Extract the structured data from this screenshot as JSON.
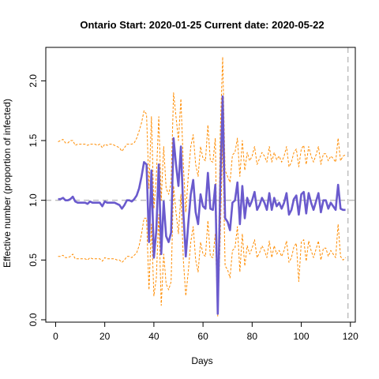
{
  "chart_data": {
    "type": "line",
    "title": "Ontario Start:  2020-01-25   Current date:  2020-05-22",
    "xlabel": "Days",
    "ylabel": "Effective number (proportion of infected)",
    "xlim": [
      -4,
      122
    ],
    "ylim": [
      -0.02,
      2.28
    ],
    "xticks": [
      0,
      20,
      40,
      60,
      80,
      100,
      120
    ],
    "yticks": [
      0.0,
      0.5,
      1.0,
      1.5,
      2.0
    ],
    "ytick_labels": [
      "0.0",
      "0.5",
      "1.0",
      "1.5",
      "2.0"
    ],
    "reference_hline": 1.0,
    "reference_vline": 119,
    "colors": {
      "main": "#6a5acd",
      "bounds": "#ff8c00",
      "reference": "#bebebe",
      "axis": "#000000"
    },
    "x": [
      1,
      2,
      3,
      4,
      5,
      6,
      7,
      8,
      9,
      10,
      11,
      12,
      13,
      14,
      15,
      16,
      17,
      18,
      19,
      20,
      21,
      22,
      23,
      24,
      25,
      26,
      27,
      28,
      29,
      30,
      31,
      32,
      33,
      34,
      35,
      36,
      37,
      38,
      39,
      40,
      41,
      42,
      43,
      44,
      45,
      46,
      47,
      48,
      49,
      50,
      51,
      52,
      53,
      54,
      55,
      56,
      57,
      58,
      59,
      60,
      61,
      62,
      63,
      64,
      65,
      66,
      67,
      68,
      69,
      70,
      71,
      72,
      73,
      74,
      75,
      76,
      77,
      78,
      79,
      80,
      81,
      82,
      83,
      84,
      85,
      86,
      87,
      88,
      89,
      90,
      91,
      92,
      93,
      94,
      95,
      96,
      97,
      98,
      99,
      100,
      101,
      102,
      103,
      104,
      105,
      106,
      107,
      108,
      109,
      110,
      111,
      112,
      113,
      114,
      115,
      116,
      117,
      118
    ],
    "series": [
      {
        "role": "estimate",
        "values": [
          1.01,
          1.01,
          1.02,
          1.0,
          1.0,
          1.01,
          1.03,
          0.99,
          0.98,
          0.98,
          0.98,
          0.98,
          0.97,
          0.99,
          0.98,
          0.98,
          0.98,
          0.98,
          0.95,
          0.99,
          0.98,
          0.98,
          0.98,
          0.98,
          0.97,
          0.96,
          0.93,
          0.96,
          1.0,
          1.0,
          0.99,
          1.01,
          1.04,
          1.1,
          1.2,
          1.32,
          1.3,
          0.65,
          1.25,
          0.52,
          0.75,
          1.3,
          0.55,
          0.99,
          0.7,
          0.65,
          0.73,
          1.52,
          1.3,
          1.12,
          1.45,
          0.9,
          0.53,
          0.8,
          1.05,
          1.17,
          0.9,
          0.8,
          1.05,
          0.95,
          0.93,
          1.23,
          0.93,
          0.92,
          1.13,
          0.05,
          1.1,
          1.87,
          0.85,
          0.82,
          0.75,
          0.98,
          1.0,
          1.15,
          0.8,
          1.12,
          0.85,
          1.02,
          0.95,
          1.0,
          1.07,
          0.92,
          0.96,
          1.02,
          0.98,
          0.92,
          1.06,
          0.92,
          1.02,
          0.95,
          0.98,
          0.93,
          0.98,
          1.06,
          0.88,
          0.92,
          1.01,
          1.04,
          0.88,
          1.05,
          1.07,
          0.89,
          1.06,
          0.98,
          0.92,
          0.99,
          1.06,
          0.9,
          1.0,
          1.0,
          0.93,
          0.98,
          0.95,
          0.92,
          1.13,
          0.93,
          0.92,
          0.92
        ]
      },
      {
        "role": "upper",
        "values": [
          1.49,
          1.5,
          1.51,
          1.48,
          1.48,
          1.5,
          1.5,
          1.46,
          1.47,
          1.47,
          1.47,
          1.47,
          1.46,
          1.47,
          1.47,
          1.47,
          1.46,
          1.47,
          1.44,
          1.47,
          1.46,
          1.47,
          1.47,
          1.46,
          1.45,
          1.44,
          1.41,
          1.44,
          1.47,
          1.47,
          1.47,
          1.48,
          1.52,
          1.58,
          1.65,
          1.75,
          1.72,
          1.1,
          1.7,
          0.93,
          1.2,
          1.7,
          1.0,
          1.45,
          1.1,
          1.05,
          1.15,
          1.9,
          1.7,
          1.5,
          1.85,
          1.3,
          0.9,
          1.2,
          1.45,
          1.55,
          1.3,
          1.2,
          1.45,
          1.35,
          1.33,
          1.63,
          1.33,
          1.32,
          1.52,
          0.12,
          1.55,
          2.2,
          1.25,
          1.2,
          1.15,
          1.38,
          1.4,
          1.52,
          1.2,
          1.5,
          1.25,
          1.4,
          1.33,
          1.37,
          1.45,
          1.3,
          1.35,
          1.4,
          1.37,
          1.32,
          1.45,
          1.32,
          1.4,
          1.34,
          1.37,
          1.32,
          1.37,
          1.45,
          1.28,
          1.32,
          1.4,
          1.43,
          1.28,
          1.43,
          1.46,
          1.3,
          1.45,
          1.37,
          1.32,
          1.38,
          1.45,
          1.3,
          1.39,
          1.39,
          1.33,
          1.37,
          1.35,
          1.32,
          1.52,
          1.33,
          1.37,
          1.38
        ]
      },
      {
        "role": "lower",
        "values": [
          0.53,
          0.53,
          0.54,
          0.52,
          0.52,
          0.53,
          0.55,
          0.51,
          0.51,
          0.51,
          0.51,
          0.51,
          0.5,
          0.52,
          0.51,
          0.51,
          0.51,
          0.51,
          0.49,
          0.52,
          0.51,
          0.51,
          0.51,
          0.51,
          0.5,
          0.5,
          0.48,
          0.5,
          0.53,
          0.53,
          0.52,
          0.54,
          0.56,
          0.62,
          0.72,
          0.85,
          0.85,
          0.25,
          0.8,
          0.2,
          0.35,
          0.88,
          0.12,
          0.55,
          0.3,
          0.25,
          0.32,
          1.12,
          0.9,
          0.72,
          1.05,
          0.5,
          0.2,
          0.4,
          0.65,
          0.78,
          0.5,
          0.4,
          0.65,
          0.55,
          0.53,
          0.83,
          0.53,
          0.52,
          0.72,
          0.03,
          0.68,
          1.5,
          0.45,
          0.42,
          0.35,
          0.58,
          0.6,
          0.78,
          0.4,
          0.72,
          0.45,
          0.62,
          0.55,
          0.6,
          0.67,
          0.52,
          0.56,
          0.62,
          0.58,
          0.52,
          0.66,
          0.52,
          0.62,
          0.55,
          0.58,
          0.53,
          0.58,
          0.66,
          0.48,
          0.52,
          0.61,
          0.64,
          0.32,
          0.65,
          0.67,
          0.49,
          0.66,
          0.58,
          0.52,
          0.59,
          0.66,
          0.5,
          0.6,
          0.6,
          0.53,
          0.58,
          0.55,
          0.52,
          0.8,
          0.53,
          0.5,
          0.52
        ]
      }
    ],
    "grid": false,
    "legend": "none"
  }
}
